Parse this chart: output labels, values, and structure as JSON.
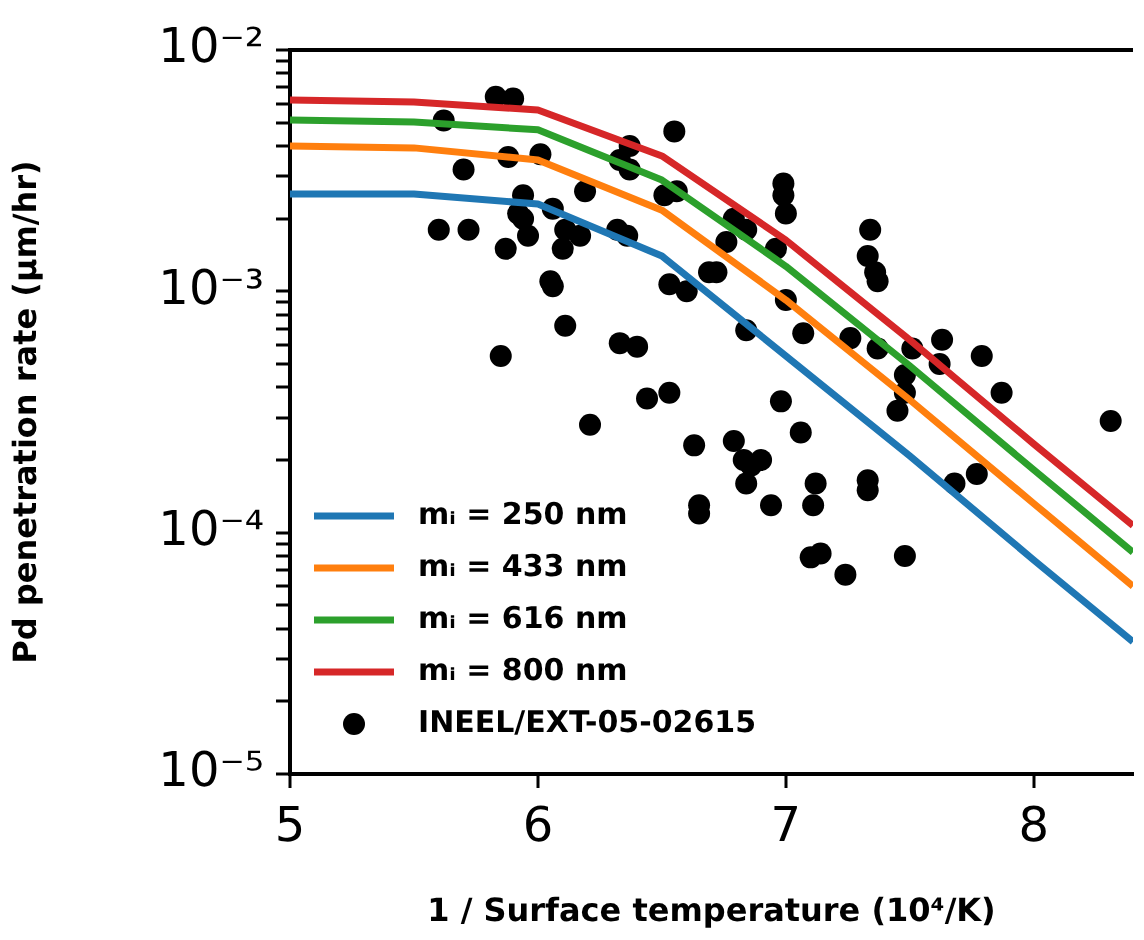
{
  "chart_data": {
    "type": "line",
    "xlabel": "1 / Surface temperature (10⁴/K)",
    "ylabel": "Pd penetration rate (μm/hr)",
    "log": "y",
    "grid": false,
    "legend": "bottom left",
    "xlim": [
      5,
      8.4
    ],
    "xticks": [
      5,
      6,
      7,
      8
    ],
    "ylim": [
      1e-05,
      0.01
    ],
    "yticks": [
      {
        "value": 1e-05,
        "label": "10⁻⁵"
      },
      {
        "value": 2e-05,
        "label": null
      },
      {
        "value": 3e-05,
        "label": null
      },
      {
        "value": 4e-05,
        "label": null
      },
      {
        "value": 5e-05,
        "label": null
      },
      {
        "value": 6e-05,
        "label": null
      },
      {
        "value": 7e-05,
        "label": null
      },
      {
        "value": 8e-05,
        "label": null
      },
      {
        "value": 9e-05,
        "label": null
      },
      {
        "value": 0.0001,
        "label": "10⁻⁴"
      },
      {
        "value": 0.0002,
        "label": null
      },
      {
        "value": 0.0003,
        "label": null
      },
      {
        "value": 0.0004,
        "label": null
      },
      {
        "value": 0.0005,
        "label": null
      },
      {
        "value": 0.0006,
        "label": null
      },
      {
        "value": 0.0007,
        "label": null
      },
      {
        "value": 0.0008,
        "label": null
      },
      {
        "value": 0.0009,
        "label": null
      },
      {
        "value": 0.001,
        "label": "10⁻³"
      },
      {
        "value": 0.002,
        "label": null
      },
      {
        "value": 0.003,
        "label": null
      },
      {
        "value": 0.004,
        "label": null
      },
      {
        "value": 0.005,
        "label": null
      },
      {
        "value": 0.006,
        "label": null
      },
      {
        "value": 0.007,
        "label": null
      },
      {
        "value": 0.008,
        "label": null
      },
      {
        "value": 0.009,
        "label": null
      },
      {
        "value": 0.01,
        "label": "10⁻²"
      }
    ],
    "series": [
      {
        "name": "mᵢ = 250 nm",
        "color": "#1f77b4",
        "marker": "none",
        "x": [
          5,
          5.5,
          6,
          6.5,
          7,
          7.5,
          8,
          8.4
        ],
        "values": [
          0.00253,
          0.00253,
          0.0023,
          0.0014,
          0.00054,
          0.000208,
          7.7e-05,
          3.53e-05
        ]
      },
      {
        "name": "mᵢ = 433 nm",
        "color": "#ff7f0e",
        "marker": "none",
        "x": [
          5,
          5.5,
          6,
          6.5,
          7,
          7.5,
          8,
          8.4
        ],
        "values": [
          0.004,
          0.00393,
          0.0035,
          0.00217,
          0.00092,
          0.000355,
          0.000132,
          6e-05
        ]
      },
      {
        "name": "mᵢ = 616 nm",
        "color": "#2ca02c",
        "marker": "none",
        "x": [
          5,
          5.5,
          6,
          6.5,
          7,
          7.5,
          8,
          8.4
        ],
        "values": [
          0.00513,
          0.00503,
          0.00467,
          0.00289,
          0.00127,
          0.000491,
          0.000182,
          8.3e-05
        ]
      },
      {
        "name": "mᵢ = 800 nm",
        "color": "#d62728",
        "marker": "none",
        "x": [
          5,
          5.5,
          6,
          6.5,
          7,
          7.5,
          8,
          8.4
        ],
        "values": [
          0.0062,
          0.00609,
          0.00564,
          0.00364,
          0.00163,
          0.000629,
          0.000233,
          0.000107
        ]
      },
      {
        "name": "INEEL/EXT-05-02615",
        "type": "scatter",
        "color": "#000000",
        "marker": "circle",
        "x": [
          5.83,
          5.9,
          5.62,
          5.7,
          5.88,
          6.01,
          5.94,
          5.92,
          5.94,
          6.06,
          6.19,
          5.6,
          5.72,
          5.87,
          5.96,
          6.1,
          6.11,
          6.17,
          6.05,
          6.06,
          6.11,
          5.85,
          6.32,
          6.36,
          6.37,
          6.33,
          6.37,
          6.55,
          6.51,
          6.56,
          6.53,
          6.6,
          6.69,
          6.33,
          6.4,
          6.44,
          6.53,
          6.21,
          6.63,
          6.65,
          6.65,
          6.72,
          6.76,
          6.79,
          6.84,
          6.84,
          6.96,
          6.99,
          6.99,
          7.0,
          7.0,
          7.07,
          6.98,
          7.26,
          7.34,
          7.33,
          7.36,
          7.37,
          7.37,
          7.51,
          7.48,
          7.63,
          7.62,
          7.79,
          7.87,
          7.45,
          8.31,
          6.79,
          6.83,
          6.86,
          6.9,
          6.84,
          6.94,
          7.06,
          7.12,
          7.11,
          7.1,
          7.14,
          7.24,
          7.33,
          7.33,
          7.48,
          7.48,
          7.68,
          7.77
        ],
        "values": [
          0.0064,
          0.0063,
          0.0051,
          0.0032,
          0.0036,
          0.0037,
          0.0025,
          0.0021,
          0.002,
          0.0022,
          0.0026,
          0.0018,
          0.0018,
          0.0015,
          0.0017,
          0.0015,
          0.0018,
          0.0017,
          0.0011,
          0.00105,
          0.00072,
          0.00054,
          0.0018,
          0.0017,
          0.004,
          0.0035,
          0.0032,
          0.0046,
          0.0025,
          0.0026,
          0.00107,
          0.001,
          0.0012,
          0.00061,
          0.00059,
          0.00036,
          0.00038,
          0.00028,
          0.00023,
          0.00013,
          0.00012,
          0.0012,
          0.0016,
          0.002,
          0.0018,
          0.00069,
          0.0015,
          0.0028,
          0.0025,
          0.0021,
          0.00092,
          0.00067,
          0.00035,
          0.00064,
          0.0018,
          0.0014,
          0.0012,
          0.0011,
          0.00058,
          0.00058,
          0.00045,
          0.00063,
          0.0005,
          0.00054,
          0.00038,
          0.00032,
          0.00029,
          0.00024,
          0.0002,
          0.00019,
          0.0002,
          0.00016,
          0.00013,
          0.00026,
          0.00016,
          0.00013,
          7.9e-05,
          8.2e-05,
          6.7e-05,
          0.000165,
          0.00015,
          8e-05,
          0.00038,
          0.00016,
          0.000175
        ]
      }
    ]
  }
}
